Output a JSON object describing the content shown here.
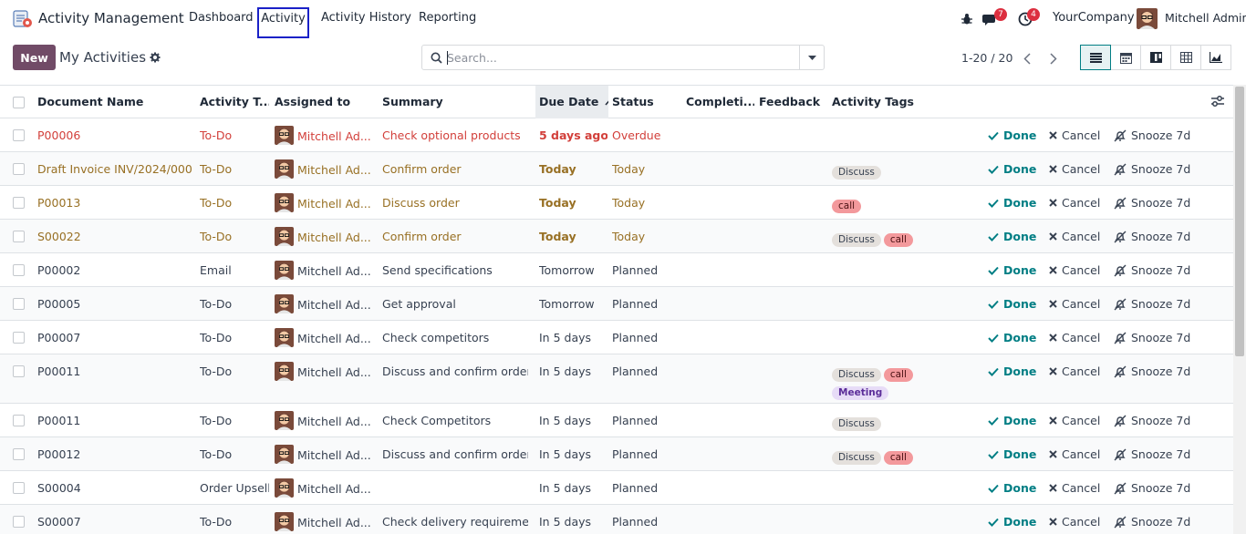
{
  "navbar": {
    "app_name": "Activity Management",
    "menu": [
      "Dashboard",
      "Activity",
      "Activity History",
      "Reporting"
    ],
    "active_menu": "Activity",
    "messages_badge": "7",
    "activities_badge": "4",
    "company": "YourCompany",
    "user": "Mitchell Admin"
  },
  "control": {
    "new_label": "New",
    "breadcrumb": "My Activities",
    "search_placeholder": "Search...",
    "pager": "1-20 / 20"
  },
  "columns": {
    "document_name": "Document Name",
    "activity_type": "Activity T...",
    "assigned_to": "Assigned to",
    "summary": "Summary",
    "due_date": "Due Date",
    "status": "Status",
    "completion": "Completi...",
    "feedback": "Feedback",
    "activity_tags": "Activity Tags"
  },
  "actions": {
    "done": "Done",
    "cancel": "Cancel",
    "snooze": "Snooze 7d"
  },
  "rows": [
    {
      "doc": "P00006",
      "type": "To-Do",
      "assigned": "Mitchell Ad...",
      "summary": "Check optional products",
      "due": "5 days ago",
      "status": "Overdue",
      "tags": [],
      "tone": "overdue"
    },
    {
      "doc": "Draft Invoice INV/2024/000...",
      "type": "To-Do",
      "assigned": "Mitchell Ad...",
      "summary": "Confirm order",
      "due": "Today",
      "status": "Today",
      "tags": [
        "Discuss"
      ],
      "tone": "today"
    },
    {
      "doc": "P00013",
      "type": "To-Do",
      "assigned": "Mitchell Ad...",
      "summary": "Discuss order",
      "due": "Today",
      "status": "Today",
      "tags": [
        "call"
      ],
      "tone": "today"
    },
    {
      "doc": "S00022",
      "type": "To-Do",
      "assigned": "Mitchell Ad...",
      "summary": "Confirm order",
      "due": "Today",
      "status": "Today",
      "tags": [
        "Discuss",
        "call"
      ],
      "tone": "today"
    },
    {
      "doc": "P00002",
      "type": "Email",
      "assigned": "Mitchell Ad...",
      "summary": "Send specifications",
      "due": "Tomorrow",
      "status": "Planned",
      "tags": [],
      "tone": "planned"
    },
    {
      "doc": "P00005",
      "type": "To-Do",
      "assigned": "Mitchell Ad...",
      "summary": "Get approval",
      "due": "Tomorrow",
      "status": "Planned",
      "tags": [],
      "tone": "planned"
    },
    {
      "doc": "P00007",
      "type": "To-Do",
      "assigned": "Mitchell Ad...",
      "summary": "Check competitors",
      "due": "In 5 days",
      "status": "Planned",
      "tags": [],
      "tone": "planned"
    },
    {
      "doc": "P00011",
      "type": "To-Do",
      "assigned": "Mitchell Ad...",
      "summary": "Discuss and confirm order",
      "due": "In 5 days",
      "status": "Planned",
      "tags": [
        "Discuss",
        "call",
        "Meeting"
      ],
      "tone": "planned"
    },
    {
      "doc": "P00011",
      "type": "To-Do",
      "assigned": "Mitchell Ad...",
      "summary": "Check Competitors",
      "due": "In 5 days",
      "status": "Planned",
      "tags": [
        "Discuss"
      ],
      "tone": "planned"
    },
    {
      "doc": "P00012",
      "type": "To-Do",
      "assigned": "Mitchell Ad...",
      "summary": "Discuss and confirm order",
      "due": "In 5 days",
      "status": "Planned",
      "tags": [
        "Discuss",
        "call"
      ],
      "tone": "planned"
    },
    {
      "doc": "S00004",
      "type": "Order Upsell",
      "assigned": "Mitchell Ad...",
      "summary": "",
      "due": "In 5 days",
      "status": "Planned",
      "tags": [],
      "tone": "planned"
    },
    {
      "doc": "S00007",
      "type": "To-Do",
      "assigned": "Mitchell Ad...",
      "summary": "Check delivery requireme...",
      "due": "In 5 days",
      "status": "Planned",
      "tags": [],
      "tone": "planned"
    }
  ]
}
